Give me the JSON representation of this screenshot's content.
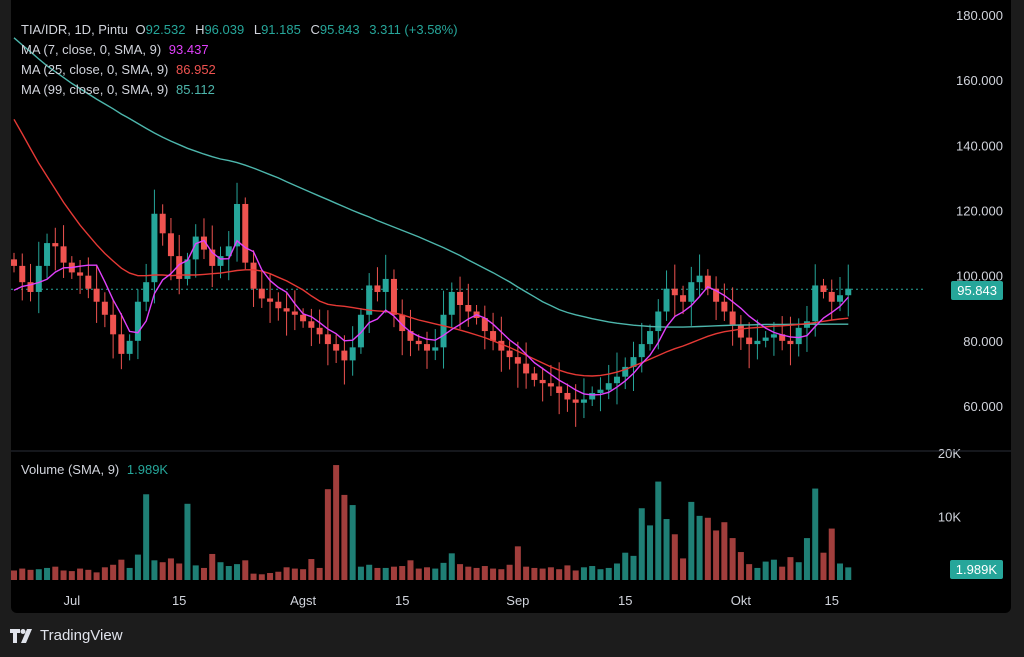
{
  "legend": {
    "symbol": "TIA/IDR, 1D, Pintu",
    "o_label": "O",
    "o_value": "92.532",
    "h_label": "H",
    "h_value": "96.039",
    "l_label": "L",
    "l_value": "91.185",
    "c_label": "C",
    "c_value": "95.843",
    "change": "3.311 (+3.58%)",
    "ma7_label": "MA (7, close, 0, SMA, 9)",
    "ma7_value": "93.437",
    "ma25_label": "MA (25, close, 0, SMA, 9)",
    "ma25_value": "86.952",
    "ma99_label": "MA (99, close, 0, SMA, 9)",
    "ma99_value": "85.112",
    "volume_label": "Volume (SMA, 9)",
    "volume_value": "1.989K"
  },
  "price_tag": "95.843",
  "volume_tag": "1.989K",
  "brand": "TradingView",
  "colors": {
    "up": "#26a69a",
    "down": "#ef5350",
    "ma7": "#e040fb",
    "ma25": "#e53935",
    "ma99": "#4db6ac",
    "bg": "#000000"
  },
  "chart_data": {
    "type": "candlestick",
    "price_axis_ticks": [
      "180.000",
      "160.000",
      "140.000",
      "120.000",
      "100.000",
      "80.000",
      "60.000"
    ],
    "volume_axis_ticks": [
      "20K",
      "10K"
    ],
    "x_ticks": [
      "Jul",
      "15",
      "Agst",
      "15",
      "Sep",
      "15",
      "Okt",
      "15"
    ],
    "ylim": [
      48,
      182
    ],
    "volume_ylim": [
      0,
      20000
    ],
    "closes": [
      103,
      98,
      95,
      103,
      110,
      109,
      104,
      101,
      100,
      96,
      92,
      88,
      82,
      76,
      80,
      92,
      98,
      119,
      113,
      106,
      99,
      105,
      112,
      108,
      103,
      106,
      109,
      122,
      104,
      96,
      93,
      92,
      90,
      89,
      88,
      86,
      84,
      82,
      79,
      77,
      74,
      78,
      88,
      97,
      95,
      99,
      88,
      83,
      80,
      79,
      77,
      78,
      88,
      95,
      91,
      89,
      87,
      83,
      80,
      77,
      75,
      73,
      70,
      68,
      67,
      66,
      64,
      62,
      61,
      62,
      64,
      65,
      67,
      69,
      72,
      75,
      79,
      83,
      89,
      96,
      94,
      92,
      98,
      100,
      96,
      92,
      89,
      85,
      81,
      79,
      80,
      81,
      82,
      80,
      79,
      84,
      86,
      97,
      95,
      92,
      94,
      96
    ],
    "volumes": [
      1500,
      1800,
      1600,
      1700,
      1900,
      2100,
      1500,
      1400,
      1800,
      1600,
      1200,
      2000,
      2400,
      3200,
      1900,
      4000,
      13500,
      3100,
      2800,
      3400,
      2600,
      12000,
      2300,
      1900,
      4100,
      2800,
      2200,
      2500,
      3100,
      1000,
      900,
      1100,
      1300,
      2000,
      1800,
      1700,
      3300,
      1900,
      14300,
      18100,
      13400,
      11800,
      2100,
      2400,
      1900,
      1900,
      2100,
      2200,
      3100,
      1800,
      2000,
      1800,
      2700,
      4200,
      2500,
      2100,
      1900,
      2200,
      1800,
      1700,
      2400,
      5300,
      2100,
      1900,
      1800,
      2000,
      1700,
      2300,
      1500,
      2000,
      2200,
      1700,
      1900,
      2600,
      4300,
      3800,
      11300,
      8600,
      15500,
      9600,
      7200,
      3400,
      12300,
      10100,
      9800,
      7800,
      9100,
      6600,
      4400,
      2500,
      1900,
      2900,
      3200,
      2100,
      3600,
      2800,
      6600,
      14400,
      4300,
      8100,
      2600,
      1989
    ],
    "ma7": [
      95.5,
      96.7,
      97.2,
      97.9,
      98.9,
      101.1,
      102.4,
      102.5,
      102.9,
      103.2,
      103.2,
      98.1,
      92.6,
      88.0,
      82.9,
      82.5,
      86.1,
      94.5,
      98.7,
      100.6,
      103.4,
      104.7,
      109.8,
      110.8,
      107.1,
      105.1,
      105.2,
      110.7,
      108.6,
      107.4,
      101.8,
      98.5,
      96.4,
      94.9,
      91.4,
      88.3,
      87.4,
      85.6,
      83.6,
      82.2,
      80.0,
      80.2,
      82.5,
      85.6,
      86.7,
      89.4,
      87.6,
      84.9,
      82.7,
      81.4,
      80.5,
      80.2,
      81.7,
      83.5,
      85.0,
      86.7,
      88.0,
      87.0,
      85.1,
      82.7,
      80.3,
      78.4,
      75.9,
      73.3,
      71.5,
      69.7,
      67.9,
      66.5,
      64.9,
      63.7,
      63.4,
      63.5,
      64.2,
      65.8,
      67.7,
      70.0,
      73.0,
      75.6,
      79.5,
      84.3,
      87.5,
      88.9,
      90.8,
      93.6,
      96.6,
      95.4,
      93.9,
      92.0,
      90.0,
      87.6,
      85.7,
      83.9,
      82.6,
      81.8,
      81.2,
      81.0,
      81.6,
      84.4,
      87.0,
      88.7,
      90.6,
      93.4
    ],
    "ma25": [
      148,
      143.5,
      139,
      134.5,
      130.5,
      126.5,
      122.5,
      119,
      115.5,
      112.5,
      109.5,
      106.8,
      104.5,
      102.3,
      100.8,
      100,
      100,
      100.2,
      100.2,
      100,
      100.2,
      100.2,
      100.2,
      100.4,
      100.6,
      100.8,
      101.2,
      101.6,
      101.8,
      101.8,
      101.4,
      100.6,
      99.5,
      98.4,
      97,
      95.6,
      93.8,
      92.2,
      91.2,
      90.8,
      90.6,
      90.2,
      89.8,
      89.4,
      89.2,
      89,
      88.6,
      88,
      87.2,
      86.4,
      85.8,
      85.2,
      84.6,
      84,
      83.3,
      82.6,
      81.8,
      81,
      80,
      79,
      78,
      76.8,
      75.6,
      74.4,
      73.2,
      72,
      71,
      70.2,
      69.6,
      69.3,
      69.2,
      69.4,
      69.8,
      70.4,
      71.2,
      72.2,
      73.3,
      74.4,
      75.5,
      76.6,
      77.6,
      78.4,
      79.4,
      80.4,
      81.4,
      82.2,
      82.8,
      83.2,
      83.6,
      83.9,
      84.1,
      84.3,
      84.5,
      84.6,
      84.8,
      85,
      85.3,
      85.6,
      86,
      86.4,
      86.7,
      86.95
    ],
    "ma99": [
      173,
      170.8,
      168.7,
      166.5,
      164.4,
      162.6,
      160.8,
      159,
      157.4,
      155.8,
      154.2,
      152.7,
      151.2,
      149.6,
      148.2,
      146.7,
      145.2,
      143.8,
      142.5,
      141.3,
      140.2,
      139.1,
      138.2,
      137.3,
      136.5,
      135.8,
      135.3,
      134.7,
      133.9,
      133,
      132,
      131,
      130,
      128.8,
      127.7,
      126.6,
      125.5,
      124.4,
      123.3,
      122.2,
      121.1,
      120,
      119,
      118,
      116.9,
      115.9,
      114.9,
      113.9,
      112.9,
      111.9,
      110.8,
      109.7,
      108.6,
      107.4,
      106.2,
      104.8,
      103.5,
      102.2,
      100.9,
      99.5,
      98.1,
      96.5,
      95,
      93.5,
      92,
      90.8,
      89.6,
      88.7,
      88,
      87.4,
      86.8,
      86.3,
      85.8,
      85.4,
      85.1,
      84.8,
      84.6,
      84.4,
      84.3,
      84.2,
      84.2,
      84.2,
      84.3,
      84.4,
      84.5,
      84.6,
      84.7,
      84.8,
      84.85,
      84.9,
      84.95,
      85,
      85.02,
      85.04,
      85.06,
      85.08,
      85.1,
      85.11,
      85.11,
      85.112,
      85.112,
      85.112
    ]
  }
}
